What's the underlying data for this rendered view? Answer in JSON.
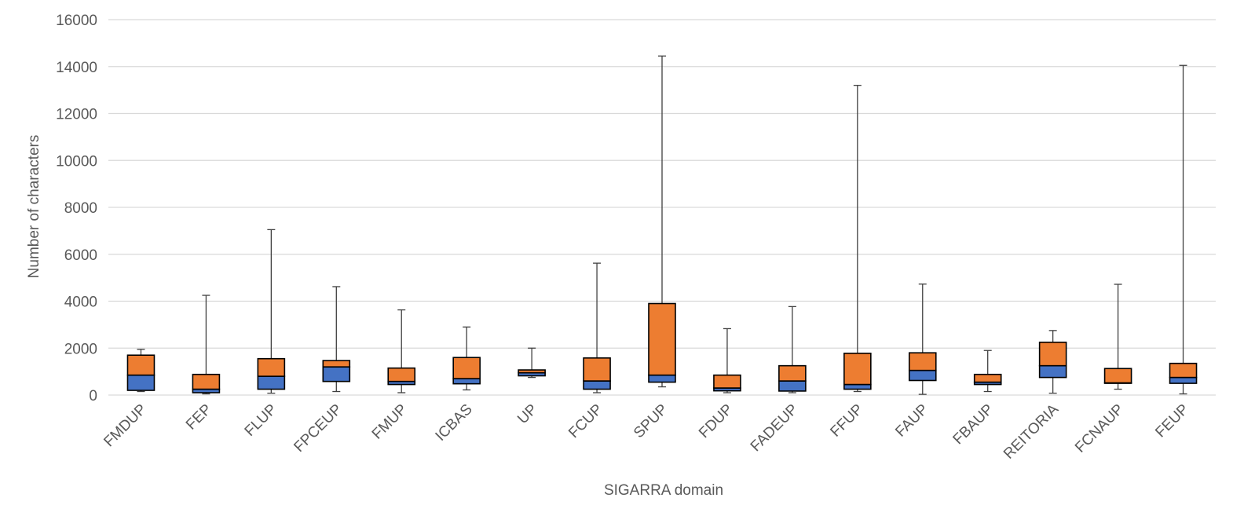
{
  "chart_data": {
    "type": "box",
    "xlabel": "SIGARRA domain",
    "ylabel": "Number of characters",
    "ylim": [
      0,
      16000
    ],
    "yticks": [
      0,
      2000,
      4000,
      6000,
      8000,
      10000,
      12000,
      14000,
      16000
    ],
    "grid": true,
    "colors": {
      "upper_box": "#ED7D31",
      "lower_box": "#4472C4",
      "whisker": "#404040",
      "grid": "#d9d9d9"
    },
    "categories": [
      "FMDUP",
      "FEP",
      "FLUP",
      "FPCEUP",
      "FMUP",
      "ICBAS",
      "UP",
      "FCUP",
      "SPUP",
      "FDUP",
      "FADEUP",
      "FFUP",
      "FAUP",
      "FBAUP",
      "REITORIA",
      "FCNAUP",
      "FEUP"
    ],
    "boxes": [
      {
        "label": "FMDUP",
        "min": 150,
        "q1": 200,
        "median": 850,
        "q3": 1700,
        "max": 1950
      },
      {
        "label": "FEP",
        "min": 50,
        "q1": 100,
        "median": 250,
        "q3": 880,
        "max": 4250
      },
      {
        "label": "FLUP",
        "min": 80,
        "q1": 250,
        "median": 800,
        "q3": 1550,
        "max": 7050
      },
      {
        "label": "FPCEUP",
        "min": 150,
        "q1": 580,
        "median": 1200,
        "q3": 1470,
        "max": 4620
      },
      {
        "label": "FMUP",
        "min": 100,
        "q1": 450,
        "median": 580,
        "q3": 1150,
        "max": 3630
      },
      {
        "label": "ICBAS",
        "min": 220,
        "q1": 480,
        "median": 700,
        "q3": 1600,
        "max": 2900
      },
      {
        "label": "UP",
        "min": 750,
        "q1": 820,
        "median": 950,
        "q3": 1070,
        "max": 2000
      },
      {
        "label": "FCUP",
        "min": 100,
        "q1": 250,
        "median": 600,
        "q3": 1580,
        "max": 5620
      },
      {
        "label": "SPUP",
        "min": 350,
        "q1": 550,
        "median": 850,
        "q3": 3900,
        "max": 14450
      },
      {
        "label": "FDUP",
        "min": 100,
        "q1": 180,
        "median": 300,
        "q3": 850,
        "max": 2830
      },
      {
        "label": "FADEUP",
        "min": 100,
        "q1": 170,
        "median": 600,
        "q3": 1250,
        "max": 3770
      },
      {
        "label": "FFUP",
        "min": 150,
        "q1": 250,
        "median": 450,
        "q3": 1780,
        "max": 13200
      },
      {
        "label": "FAUP",
        "min": 30,
        "q1": 620,
        "median": 1050,
        "q3": 1800,
        "max": 4730
      },
      {
        "label": "FBAUP",
        "min": 150,
        "q1": 450,
        "median": 550,
        "q3": 880,
        "max": 1900
      },
      {
        "label": "REITORIA",
        "min": 80,
        "q1": 750,
        "median": 1250,
        "q3": 2250,
        "max": 2750
      },
      {
        "label": "FCNAUP",
        "min": 250,
        "q1": 500,
        "median": 520,
        "q3": 1130,
        "max": 4720
      },
      {
        "label": "FEUP",
        "min": 50,
        "q1": 500,
        "median": 750,
        "q3": 1350,
        "max": 14050
      }
    ]
  }
}
